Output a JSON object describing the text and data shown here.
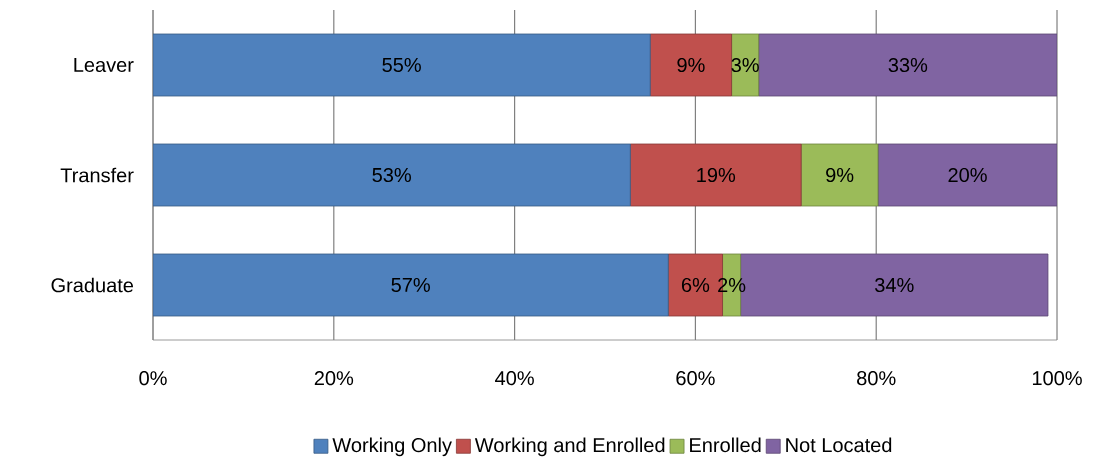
{
  "chart_data": {
    "type": "bar",
    "orientation": "horizontal",
    "stacked": true,
    "categories": [
      "Leaver",
      "Transfer",
      "Graduate"
    ],
    "series": [
      {
        "name": "Working Only",
        "color": "#4f81bd",
        "values": [
          55,
          52.8,
          57
        ],
        "value_labels": [
          "55%",
          "53%",
          "57%"
        ]
      },
      {
        "name": "Working and Enrolled",
        "color": "#c0504d",
        "values": [
          9,
          18.9,
          6
        ],
        "value_labels": [
          "9%",
          "19%",
          "6%"
        ]
      },
      {
        "name": "Enrolled",
        "color": "#9bbb59",
        "values": [
          3,
          8.5,
          2
        ],
        "value_labels": [
          "3%",
          "9%",
          "2%"
        ]
      },
      {
        "name": "Not Located",
        "color": "#8064a2",
        "values": [
          33,
          19.8,
          34
        ],
        "value_labels": [
          "33%",
          "20%",
          "34%"
        ]
      }
    ],
    "xlim": [
      0,
      100
    ],
    "xticks": [
      {
        "value": 0,
        "label": "0%"
      },
      {
        "value": 20,
        "label": "20%"
      },
      {
        "value": 40,
        "label": "40%"
      },
      {
        "value": 60,
        "label": "60%"
      },
      {
        "value": 80,
        "label": "80%"
      },
      {
        "value": 100,
        "label": "100%"
      }
    ],
    "grid": "x",
    "legend": "bottom"
  }
}
